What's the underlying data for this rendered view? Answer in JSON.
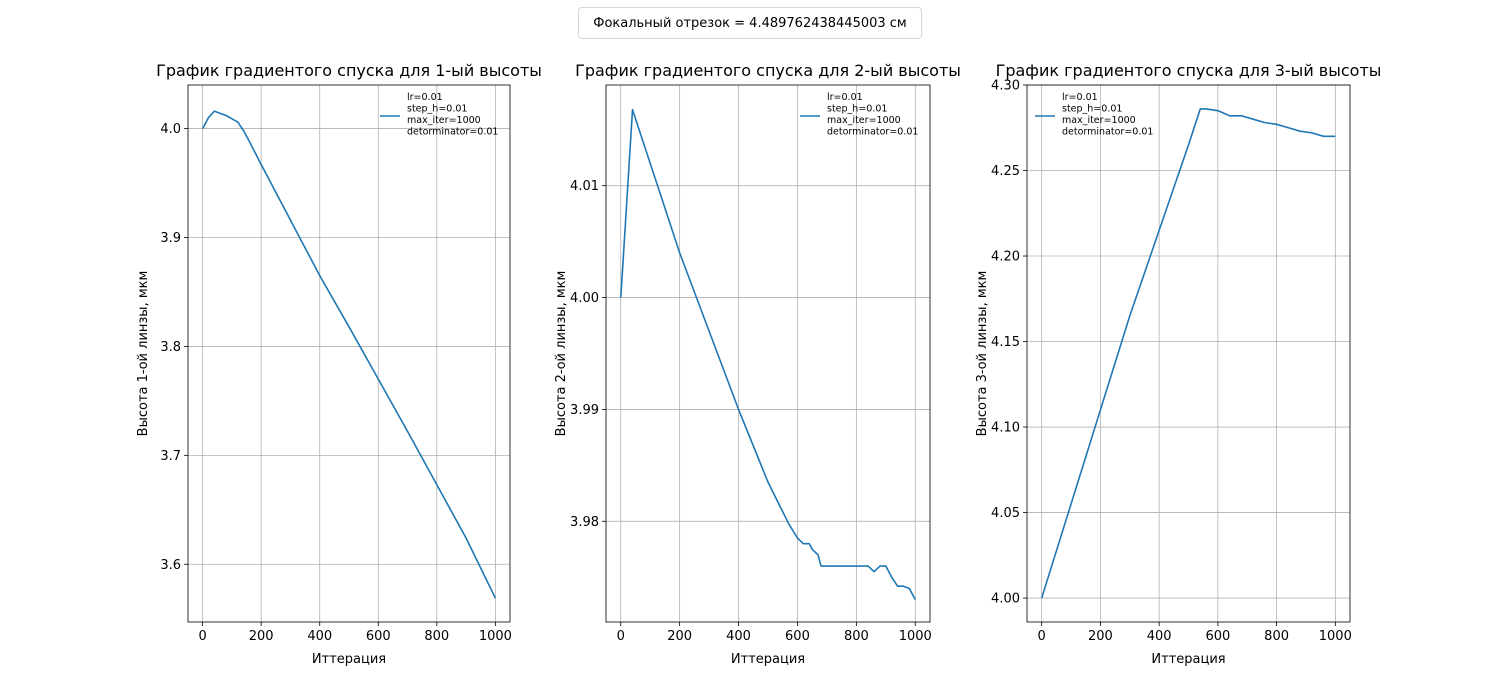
{
  "suptitle": "Фокальный отрезок = 4.489762438445003 см",
  "chart_data": [
    {
      "type": "line",
      "title": "График градиентого спуска для 1-ый высоты",
      "xlabel": "Иттерация",
      "ylabel": "Высота 1-ой линзы, мкм",
      "xlim": [
        -50,
        1050
      ],
      "ylim": [
        3.547,
        4.04
      ],
      "xticks": [
        0,
        200,
        400,
        600,
        800,
        1000
      ],
      "yticks": [
        3.6,
        3.7,
        3.8,
        3.9,
        4.0
      ],
      "ytick_labels": [
        "3.6",
        "3.7",
        "3.8",
        "3.9",
        "4.0"
      ],
      "grid": true,
      "legend_position": "upper right",
      "legend_lines": [
        "lr=0.01",
        "step_h=0.01",
        "max_iter=1000",
        "detorminator=0.01"
      ],
      "series": [
        {
          "color": "#1f77b4",
          "x": [
            0,
            20,
            40,
            60,
            80,
            100,
            120,
            140,
            160,
            200,
            300,
            400,
            500,
            600,
            700,
            800,
            900,
            1000
          ],
          "y": [
            4.0,
            4.01,
            4.016,
            4.014,
            4.012,
            4.009,
            4.006,
            3.998,
            3.988,
            3.967,
            3.916,
            3.865,
            3.818,
            3.77,
            3.722,
            3.673,
            3.624,
            3.569
          ]
        }
      ]
    },
    {
      "type": "line",
      "title": "График градиентого спуска для 2-ый высоты",
      "xlabel": "Иттерация",
      "ylabel": "Высота 2-ой линзы, мкм",
      "xlim": [
        -50,
        1050
      ],
      "ylim": [
        3.971,
        4.019
      ],
      "xticks": [
        0,
        200,
        400,
        600,
        800,
        1000
      ],
      "yticks": [
        3.98,
        3.99,
        4.0,
        4.01
      ],
      "ytick_labels": [
        "3.98",
        "3.99",
        "4.00",
        "4.01"
      ],
      "grid": true,
      "legend_position": "upper right",
      "legend_lines": [
        "lr=0.01",
        "step_h=0.01",
        "max_iter=1000",
        "detorminator=0.01"
      ],
      "series": [
        {
          "color": "#1f77b4",
          "x": [
            0,
            5,
            40,
            100,
            200,
            300,
            400,
            500,
            570,
            600,
            620,
            640,
            650,
            670,
            680,
            700,
            750,
            800,
            840,
            860,
            880,
            900,
            920,
            940,
            960,
            980,
            1000
          ],
          "y": [
            4.0,
            4.002,
            4.0168,
            4.012,
            4.004,
            3.997,
            3.99,
            3.9835,
            3.9798,
            3.9785,
            3.978,
            3.978,
            3.9775,
            3.977,
            3.976,
            3.976,
            3.976,
            3.976,
            3.976,
            3.9755,
            3.976,
            3.976,
            3.975,
            3.9742,
            3.9742,
            3.974,
            3.973
          ]
        }
      ]
    },
    {
      "type": "line",
      "title": "График градиентого спуска для 3-ый высоты",
      "xlabel": "Иттерация",
      "ylabel": "Высота 3-ой линзы, мкм",
      "xlim": [
        -50,
        1050
      ],
      "ylim": [
        3.986,
        4.3
      ],
      "xticks": [
        0,
        200,
        400,
        600,
        800,
        1000
      ],
      "yticks": [
        4.0,
        4.05,
        4.1,
        4.15,
        4.2,
        4.25,
        4.3
      ],
      "ytick_labels": [
        "4.00",
        "4.05",
        "4.10",
        "4.15",
        "4.20",
        "4.25",
        "4.30"
      ],
      "grid": true,
      "legend_position": "upper left",
      "legend_lines": [
        "lr=0.01",
        "step_h=0.01",
        "max_iter=1000",
        "detorminator=0.01"
      ],
      "series": [
        {
          "color": "#1f77b4",
          "x": [
            0,
            100,
            200,
            300,
            400,
            500,
            540,
            560,
            600,
            640,
            680,
            720,
            760,
            800,
            840,
            880,
            920,
            960,
            1000
          ],
          "y": [
            4.0,
            4.055,
            4.11,
            4.165,
            4.215,
            4.265,
            4.286,
            4.286,
            4.285,
            4.282,
            4.282,
            4.28,
            4.278,
            4.277,
            4.275,
            4.273,
            4.272,
            4.27,
            4.27
          ]
        }
      ]
    }
  ]
}
